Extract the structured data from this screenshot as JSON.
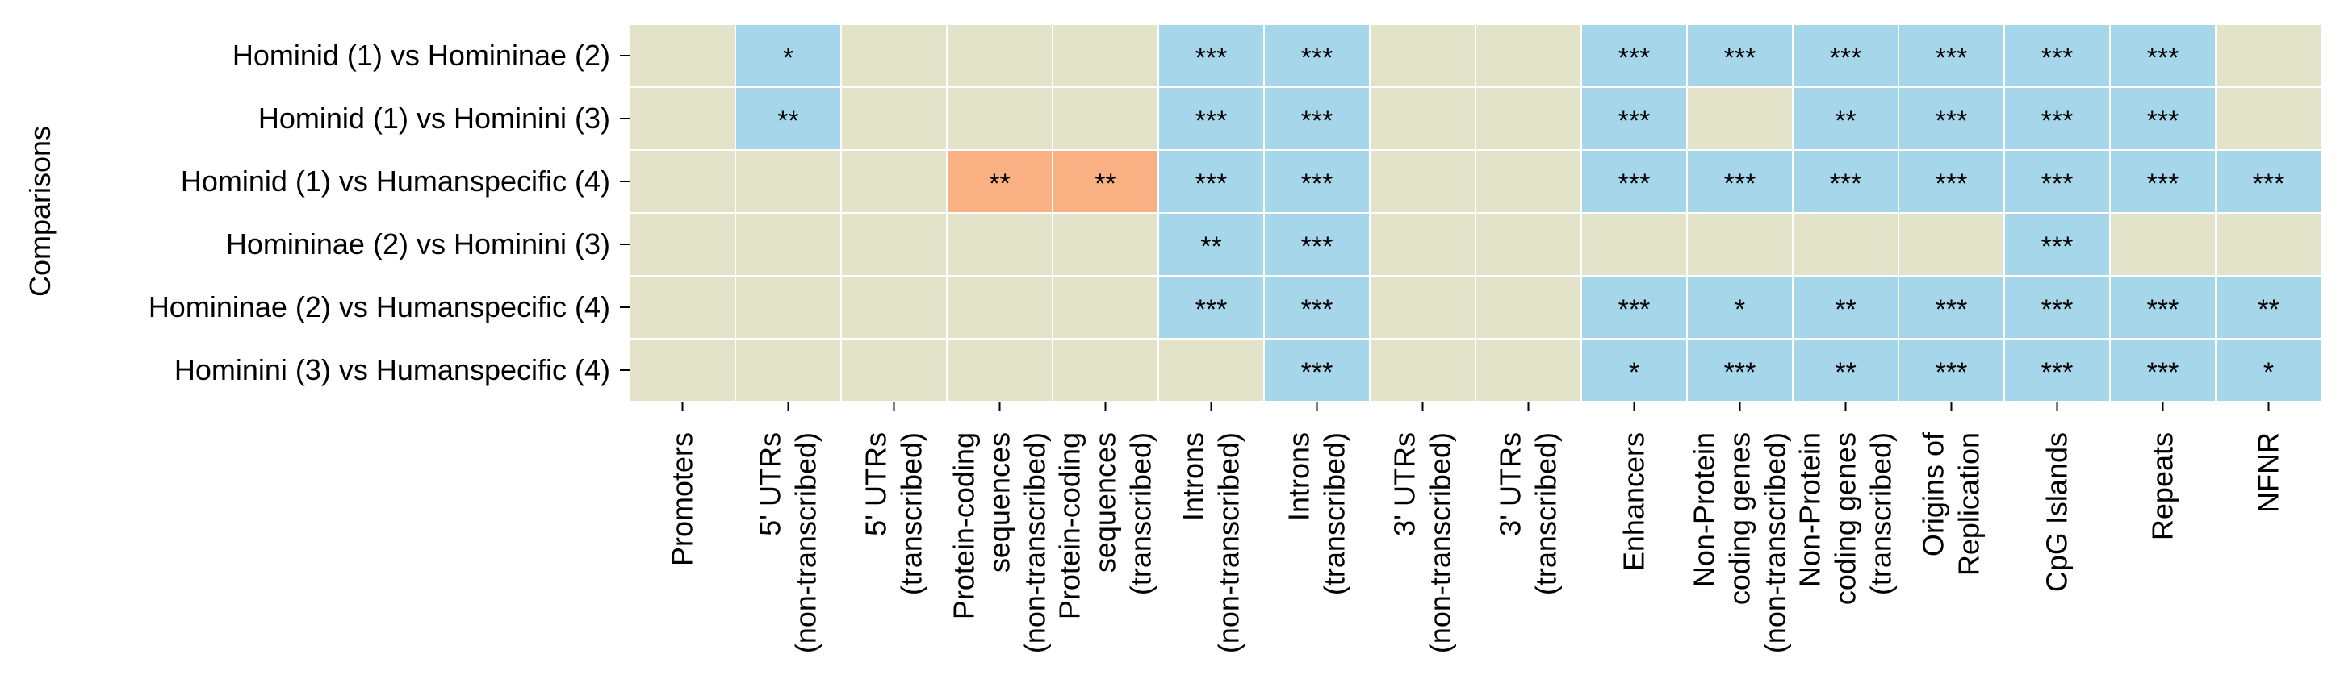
{
  "chart_data": {
    "type": "heatmap",
    "title": "",
    "xlabel": "",
    "ylabel": "Comparisons",
    "rows": [
      "Hominid (1) vs Homininae (2)",
      "Hominid (1) vs Hominini (3)",
      "Hominid (1) vs Humanspecific (4)",
      "Homininae (2) vs Hominini (3)",
      "Homininae (2) vs Humanspecific (4)",
      "Hominini (3) vs Humanspecific (4)"
    ],
    "columns": [
      [
        "Promoters"
      ],
      [
        "5' UTRs",
        "(non-transcribed)"
      ],
      [
        "5' UTRs",
        "(transcribed)"
      ],
      [
        "Protein-coding",
        "sequences",
        "(non-transcribed)"
      ],
      [
        "Protein-coding",
        "sequences",
        "(transcribed)"
      ],
      [
        "Introns",
        "(non-transcribed)"
      ],
      [
        "Introns",
        "(transcribed)"
      ],
      [
        "3' UTRs",
        "(non-transcribed)"
      ],
      [
        "3' UTRs",
        "(transcribed)"
      ],
      [
        "Enhancers"
      ],
      [
        "Non-Protein",
        "coding genes",
        "(non-transcribed)"
      ],
      [
        "Non-Protein",
        "coding genes",
        "(transcribed)"
      ],
      [
        "Origins of",
        "Replication"
      ],
      [
        "CpG Islands"
      ],
      [
        "Repeats"
      ],
      [
        "NFNR"
      ]
    ],
    "cell_state_legend": {
      "0": "not significant",
      "1": "significant (blue)",
      "2": "significant (orange)"
    },
    "cell_states": [
      [
        0,
        1,
        0,
        0,
        0,
        1,
        1,
        0,
        0,
        1,
        1,
        1,
        1,
        1,
        1,
        0
      ],
      [
        0,
        1,
        0,
        0,
        0,
        1,
        1,
        0,
        0,
        1,
        0,
        1,
        1,
        1,
        1,
        0
      ],
      [
        0,
        0,
        0,
        2,
        2,
        1,
        1,
        0,
        0,
        1,
        1,
        1,
        1,
        1,
        1,
        1
      ],
      [
        0,
        0,
        0,
        0,
        0,
        1,
        1,
        0,
        0,
        0,
        0,
        0,
        0,
        1,
        0,
        0
      ],
      [
        0,
        0,
        0,
        0,
        0,
        1,
        1,
        0,
        0,
        1,
        1,
        1,
        1,
        1,
        1,
        1
      ],
      [
        0,
        0,
        0,
        0,
        0,
        0,
        1,
        0,
        0,
        1,
        1,
        1,
        1,
        1,
        1,
        1
      ]
    ],
    "annotations": [
      [
        "",
        "*",
        "",
        "",
        "",
        "***",
        "***",
        "",
        "",
        "***",
        "***",
        "***",
        "***",
        "***",
        "***",
        ""
      ],
      [
        "",
        "**",
        "",
        "",
        "",
        "***",
        "***",
        "",
        "",
        "***",
        "",
        "**",
        "***",
        "***",
        "***",
        ""
      ],
      [
        "",
        "",
        "",
        "**",
        "**",
        "***",
        "***",
        "",
        "",
        "***",
        "***",
        "***",
        "***",
        "***",
        "***",
        "***"
      ],
      [
        "",
        "",
        "",
        "",
        "",
        "**",
        "***",
        "",
        "",
        "",
        "",
        "",
        "",
        "***",
        "",
        ""
      ],
      [
        "",
        "",
        "",
        "",
        "",
        "***",
        "***",
        "",
        "",
        "***",
        "*",
        "**",
        "***",
        "***",
        "***",
        "**"
      ],
      [
        "",
        "",
        "",
        "",
        "",
        "",
        "***",
        "",
        "",
        "*",
        "***",
        "**",
        "***",
        "***",
        "***",
        "*"
      ]
    ],
    "colors": {
      "0": "#e3e3c9",
      "1": "#a6d6ea",
      "2": "#f9b184",
      "grid": "#ffffff",
      "text": "#000000"
    },
    "grid": true,
    "legend": "none"
  }
}
